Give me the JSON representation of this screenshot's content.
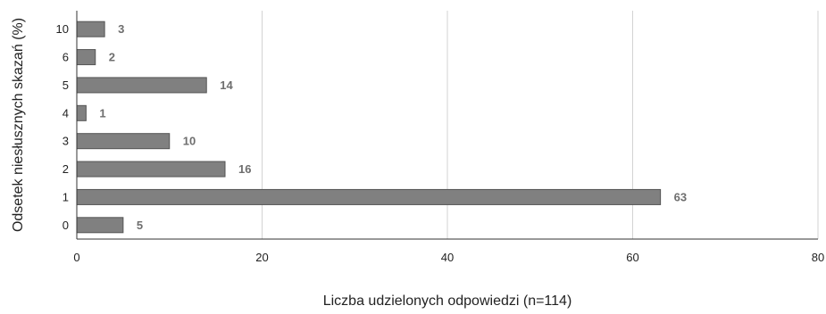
{
  "chart_data": {
    "type": "bar",
    "orientation": "horizontal",
    "categories": [
      "10",
      "6",
      "5",
      "4",
      "3",
      "2",
      "1",
      "0"
    ],
    "values": [
      3,
      2,
      14,
      1,
      10,
      16,
      63,
      5
    ],
    "data_labels": [
      "3",
      "2",
      "14",
      "1",
      "10",
      "16",
      "63",
      "5"
    ],
    "xlabel": "Liczba udzielonych odpowiedzi (n=114)",
    "ylabel": "Odsetek niesłusznych skazań (%)",
    "xlim": [
      0,
      80
    ],
    "xticks": [
      0,
      20,
      40,
      60,
      80
    ],
    "xtick_labels": [
      "0",
      "20",
      "40",
      "60",
      "80"
    ],
    "grid": "vertical",
    "legend": "none",
    "bar_color": "#808080",
    "bar_stroke": "#555555",
    "label_color": "#6e6e6e"
  }
}
